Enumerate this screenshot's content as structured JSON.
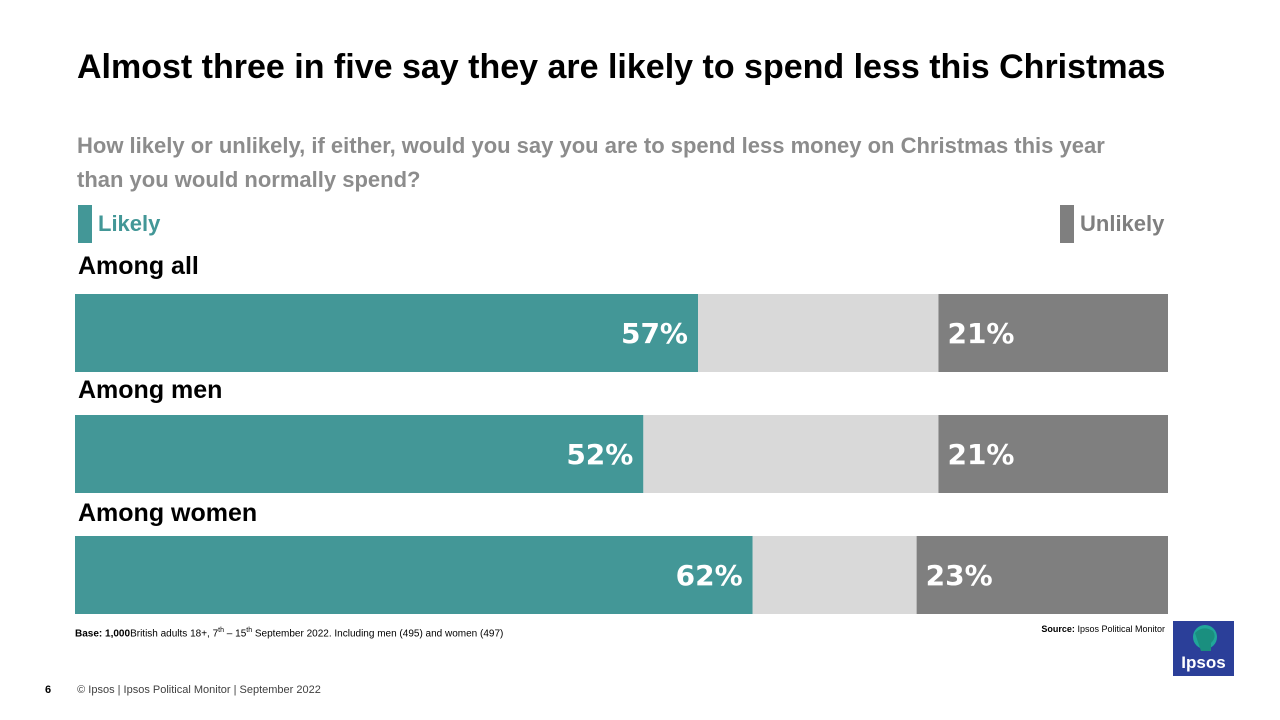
{
  "title": "Almost three in five say they are likely to spend less this Christmas",
  "subtitle": "How likely or unlikely, if either, would you say you are to spend less money on Christmas this year than you would normally spend?",
  "legend": {
    "likely": "Likely",
    "unlikely": "Unlikely"
  },
  "colors": {
    "likely": "#439797",
    "neutral": "#d9d9d9",
    "unlikely": "#7f7f7f",
    "logo": "#2b3f99"
  },
  "chart_data": {
    "type": "bar",
    "orientation": "horizontal-stacked",
    "categories": [
      "Among all",
      "Among men",
      "Among women"
    ],
    "series": [
      {
        "name": "Likely",
        "values": [
          57,
          52,
          62
        ],
        "labels": [
          "57%",
          "52%",
          "62%"
        ]
      },
      {
        "name": "",
        "values": [
          22,
          27,
          15
        ]
      },
      {
        "name": "Unlikely",
        "values": [
          21,
          21,
          23
        ],
        "labels": [
          "21%",
          "21%",
          "23%"
        ]
      }
    ],
    "xlim": [
      0,
      100
    ],
    "legend_position": "top",
    "grid": false
  },
  "notes": {
    "base_label": "Base:",
    "base_count": "1,000",
    "base_text_1": "British adults 18+, 7",
    "base_sup_1": "th",
    "base_text_2": " – 15",
    "base_sup_2": "th",
    "base_text_3": " September 2022. Including men (495) and women (497)",
    "source_label": "Source:",
    "source_text": "Ipsos  Political Monitor"
  },
  "footer": {
    "page_number": "6",
    "copyright": "© Ipsos | Ipsos  Political Monitor | September 2022"
  },
  "logo": {
    "text": "Ipsos"
  }
}
